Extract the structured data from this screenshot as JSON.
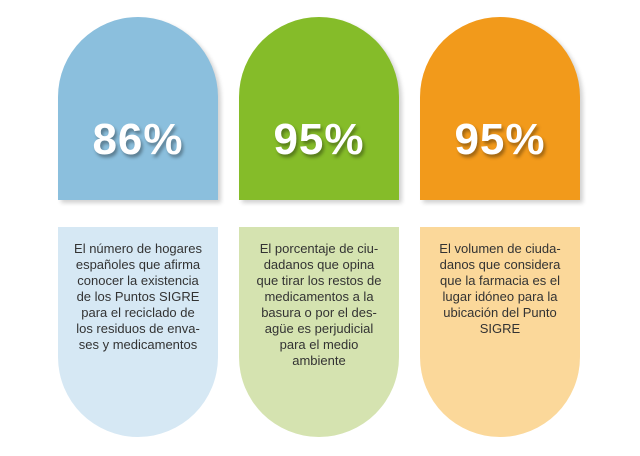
{
  "colors": {
    "blue": "#8bbfdd",
    "green": "#85bc29",
    "orange": "#f29a1b",
    "blue_light": "#d6e8f4",
    "green_light": "#d5e3b0",
    "orange_light": "#fbd89a"
  },
  "cards": [
    {
      "percent": "86%",
      "text": "El número de hogares\nespañoles que afirma\nconocer la existencia\nde los Puntos SIGRE\npara el reciclado de\nlos residuos de enva-\nses y medicamentos"
    },
    {
      "percent": "95%",
      "text": "El porcentaje de ciu-\ndadanos que opina\nque tirar los restos de\nmedicamentos a la\nbasura o por el des-\nagüe es perjudicial\npara el medio\nambiente"
    },
    {
      "percent": "95%",
      "text": "El volumen  de ciuda-\ndanos que considera\nque la farmacia es el\nlugar idóneo para la\nubicación del Punto\nSIGRE"
    }
  ]
}
